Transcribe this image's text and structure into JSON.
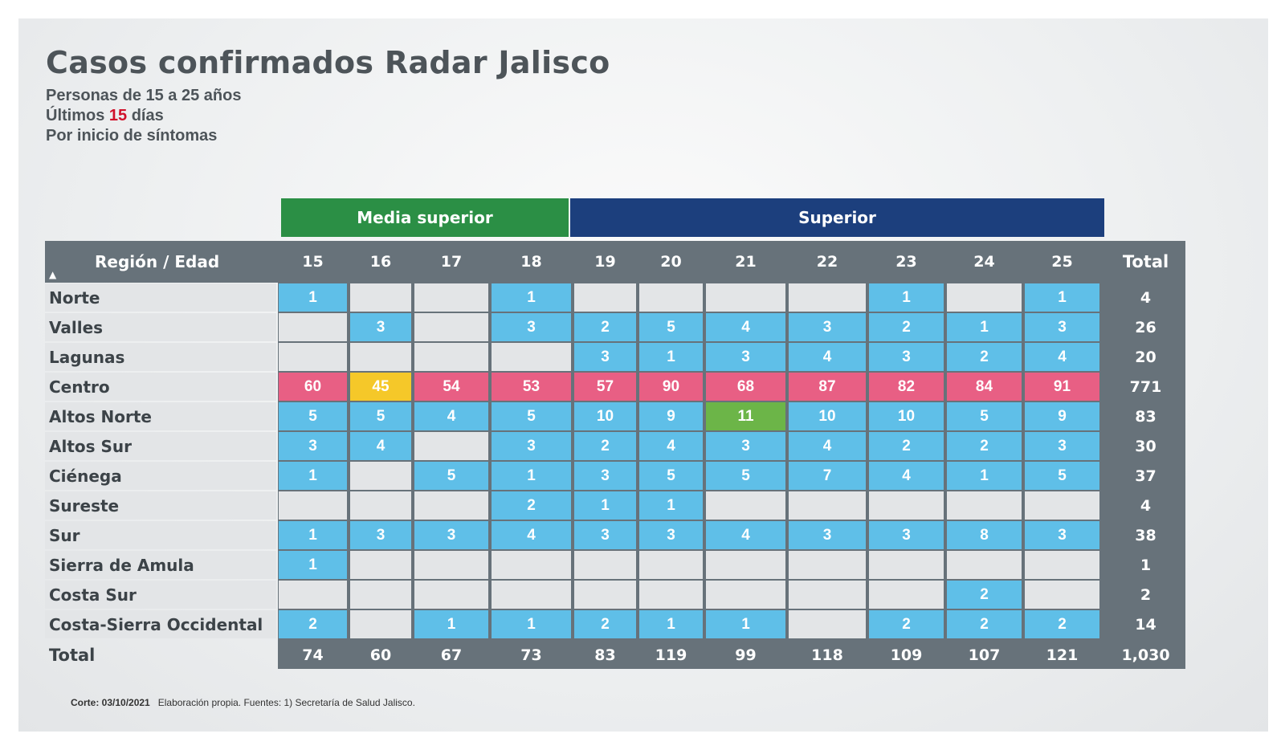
{
  "title": "Casos confirmados Radar Jalisco",
  "subtitle_1": "Personas de 15 a 25 años",
  "subtitle_2_prefix": "Últimos",
  "subtitle_2_days": "15",
  "subtitle_2_suffix": "días",
  "subtitle_3": "Por inicio de síntomas",
  "groups": [
    {
      "label": "Media superior",
      "color": "#2b8f45"
    },
    {
      "label": "Superior",
      "color": "#1c3f7d"
    }
  ],
  "colors": {
    "header_bg": "#67727a",
    "empty": "#e3e5e7",
    "blue": "#5fbfe8",
    "pink": "#e85f84",
    "yellow": "#f5c829",
    "green": "#6cb548",
    "highlight_red": "#d0102a"
  },
  "footer": {
    "cut_label": "Corte: 03/10/2021",
    "text": "Elaboración propia.  Fuentes:  1) Secretaría de Salud Jalisco."
  },
  "chart_data": {
    "type": "table",
    "corner_label": "Región / Edad",
    "columns": [
      "15",
      "16",
      "17",
      "18",
      "19",
      "20",
      "21",
      "22",
      "23",
      "24",
      "25"
    ],
    "total_label": "Total",
    "rows": [
      {
        "region": "Norte",
        "values": [
          1,
          null,
          null,
          1,
          null,
          null,
          null,
          null,
          1,
          null,
          1
        ],
        "total": "4"
      },
      {
        "region": "Valles",
        "values": [
          null,
          3,
          null,
          3,
          2,
          5,
          4,
          3,
          2,
          1,
          3
        ],
        "total": "26"
      },
      {
        "region": "Lagunas",
        "values": [
          null,
          null,
          null,
          null,
          3,
          1,
          3,
          4,
          3,
          2,
          4
        ],
        "total": "20"
      },
      {
        "region": "Centro",
        "values": [
          60,
          45,
          54,
          53,
          57,
          90,
          68,
          87,
          82,
          84,
          91
        ],
        "total": "771"
      },
      {
        "region": "Altos Norte",
        "values": [
          5,
          5,
          4,
          5,
          10,
          9,
          11,
          10,
          10,
          5,
          9
        ],
        "total": "83"
      },
      {
        "region": "Altos Sur",
        "values": [
          3,
          4,
          null,
          3,
          2,
          4,
          3,
          4,
          2,
          2,
          3
        ],
        "total": "30"
      },
      {
        "region": "Ciénega",
        "values": [
          1,
          null,
          5,
          1,
          3,
          5,
          5,
          7,
          4,
          1,
          5
        ],
        "total": "37"
      },
      {
        "region": "Sureste",
        "values": [
          null,
          null,
          null,
          2,
          1,
          1,
          null,
          null,
          null,
          null,
          null
        ],
        "total": "4"
      },
      {
        "region": "Sur",
        "values": [
          1,
          3,
          3,
          4,
          3,
          3,
          4,
          3,
          3,
          8,
          3
        ],
        "total": "38"
      },
      {
        "region": "Sierra de Amula",
        "values": [
          1,
          null,
          null,
          null,
          null,
          null,
          null,
          null,
          null,
          null,
          null
        ],
        "total": "1"
      },
      {
        "region": "Costa Sur",
        "values": [
          null,
          null,
          null,
          null,
          null,
          null,
          null,
          null,
          null,
          2,
          null
        ],
        "total": "2"
      },
      {
        "region": "Costa-Sierra Occidental",
        "values": [
          2,
          null,
          1,
          1,
          2,
          1,
          1,
          null,
          2,
          2,
          2
        ],
        "total": "14"
      }
    ],
    "column_totals": [
      "74",
      "60",
      "67",
      "73",
      "83",
      "119",
      "99",
      "118",
      "109",
      "107",
      "121"
    ],
    "grand_total": "1,030",
    "bottom_label": "Total",
    "special_cells": [
      {
        "row": 3,
        "col": 1,
        "color": "yellow"
      },
      {
        "row": 4,
        "col": 6,
        "color": "green"
      }
    ]
  }
}
